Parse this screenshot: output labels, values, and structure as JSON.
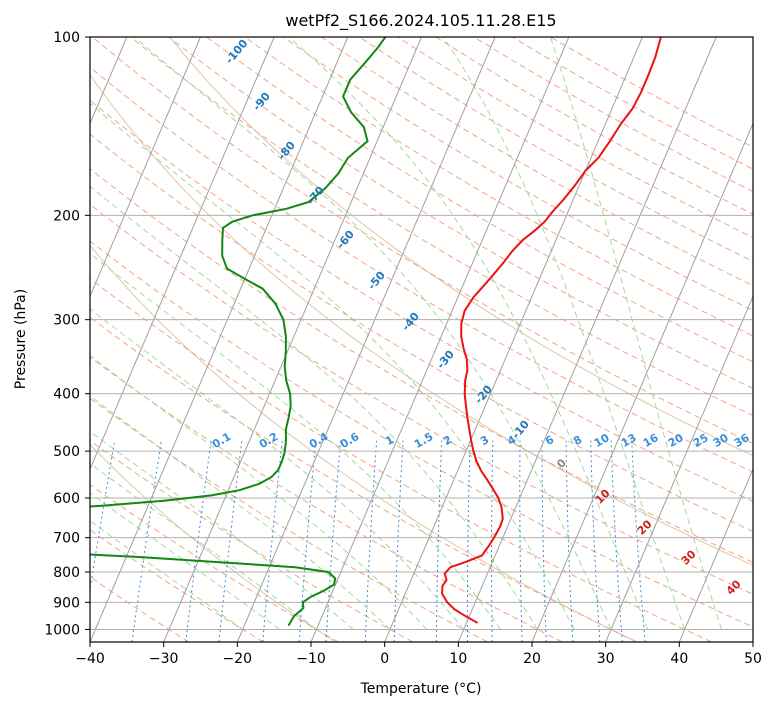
{
  "chart_data": {
    "type": "line",
    "title": "wetPf2_S166.2024.105.11.28.E15",
    "xlabel": "Temperature (°C)",
    "ylabel": "Pressure (hPa)",
    "xlim": [
      -40,
      50
    ],
    "ylim": [
      1050,
      100
    ],
    "y_scale": "log",
    "x_ticks": [
      "−40",
      "−30",
      "−20",
      "−10",
      "0",
      "10",
      "20",
      "30",
      "40",
      "50"
    ],
    "x_tick_values": [
      -40,
      -30,
      -20,
      -10,
      0,
      10,
      20,
      30,
      40,
      50
    ],
    "y_ticks": [
      "100",
      "200",
      "300",
      "400",
      "500",
      "600",
      "700",
      "800",
      "900",
      "1000"
    ],
    "y_tick_values": [
      100,
      200,
      300,
      400,
      500,
      600,
      700,
      800,
      900,
      1000
    ],
    "grid": true,
    "skew": 35,
    "series": [
      {
        "label": "temperature",
        "color": "#ee1111",
        "points": [
          [
            975,
            11.5
          ],
          [
            950,
            9.5
          ],
          [
            925,
            7.6
          ],
          [
            900,
            6.2
          ],
          [
            870,
            5.0
          ],
          [
            845,
            4.6
          ],
          [
            825,
            4.8
          ],
          [
            805,
            4.2
          ],
          [
            785,
            4.6
          ],
          [
            770,
            6.3
          ],
          [
            750,
            8.2
          ],
          [
            720,
            8.6
          ],
          [
            700,
            8.8
          ],
          [
            670,
            9.0
          ],
          [
            650,
            8.9
          ],
          [
            620,
            8.0
          ],
          [
            600,
            7.1
          ],
          [
            580,
            5.9
          ],
          [
            560,
            4.6
          ],
          [
            540,
            3.2
          ],
          [
            520,
            2.0
          ],
          [
            500,
            1.0
          ],
          [
            480,
            0.1
          ],
          [
            460,
            -0.8
          ],
          [
            440,
            -1.7
          ],
          [
            420,
            -2.6
          ],
          [
            400,
            -3.5
          ],
          [
            380,
            -4.2
          ],
          [
            365,
            -4.5
          ],
          [
            350,
            -5.2
          ],
          [
            335,
            -6.3
          ],
          [
            320,
            -7.3
          ],
          [
            305,
            -8.0
          ],
          [
            290,
            -8.3
          ],
          [
            275,
            -7.9
          ],
          [
            262,
            -7.1
          ],
          [
            250,
            -6.4
          ],
          [
            240,
            -5.8
          ],
          [
            230,
            -5.3
          ],
          [
            220,
            -4.5
          ],
          [
            212,
            -3.4
          ],
          [
            205,
            -2.6
          ],
          [
            197,
            -2.1
          ],
          [
            188,
            -1.3
          ],
          [
            178,
            -0.6
          ],
          [
            168,
            0.0
          ],
          [
            160,
            1.0
          ],
          [
            150,
            1.6
          ],
          [
            140,
            2.1
          ],
          [
            132,
            2.8
          ],
          [
            124,
            3.0
          ],
          [
            116,
            3.0
          ],
          [
            108,
            2.9
          ],
          [
            100,
            2.5
          ]
        ]
      },
      {
        "label": "dewpoint",
        "color": "#118811",
        "points": [
          [
            985,
            -14.0
          ],
          [
            950,
            -13.8
          ],
          [
            920,
            -13.0
          ],
          [
            900,
            -13.4
          ],
          [
            880,
            -12.6
          ],
          [
            860,
            -11.2
          ],
          [
            840,
            -10.2
          ],
          [
            820,
            -10.4
          ],
          [
            800,
            -11.7
          ],
          [
            785,
            -16.5
          ],
          [
            770,
            -27.0
          ],
          [
            755,
            -38.0
          ],
          [
            742,
            -50.0
          ],
          [
            728,
            -62.0
          ],
          [
            715,
            -74.0
          ],
          [
            705,
            -84.0
          ],
          [
            697,
            -92.0
          ],
          [
            660,
            -92.0
          ],
          [
            650,
            -80.0
          ],
          [
            640,
            -68.0
          ],
          [
            630,
            -56.0
          ],
          [
            618,
            -46.0
          ],
          [
            606,
            -38.0
          ],
          [
            594,
            -32.0
          ],
          [
            582,
            -28.5
          ],
          [
            568,
            -26.2
          ],
          [
            553,
            -24.9
          ],
          [
            538,
            -24.4
          ],
          [
            522,
            -24.4
          ],
          [
            505,
            -24.5
          ],
          [
            490,
            -24.8
          ],
          [
            475,
            -25.2
          ],
          [
            460,
            -25.7
          ],
          [
            440,
            -26.0
          ],
          [
            420,
            -26.4
          ],
          [
            400,
            -27.2
          ],
          [
            380,
            -28.5
          ],
          [
            360,
            -29.5
          ],
          [
            340,
            -30.2
          ],
          [
            320,
            -31.1
          ],
          [
            300,
            -32.4
          ],
          [
            282,
            -34.4
          ],
          [
            266,
            -37.0
          ],
          [
            256,
            -40.0
          ],
          [
            246,
            -43.0
          ],
          [
            234,
            -44.4
          ],
          [
            220,
            -45.3
          ],
          [
            210,
            -45.9
          ],
          [
            205,
            -45.0
          ],
          [
            200,
            -42.6
          ],
          [
            195,
            -38.4
          ],
          [
            190,
            -35.8
          ],
          [
            180,
            -34.3
          ],
          [
            170,
            -33.4
          ],
          [
            160,
            -33.0
          ],
          [
            150,
            -31.3
          ],
          [
            142,
            -32.6
          ],
          [
            134,
            -35.2
          ],
          [
            126,
            -37.2
          ],
          [
            118,
            -37.2
          ],
          [
            110,
            -36.1
          ],
          [
            104,
            -35.3
          ],
          [
            100,
            -34.9
          ]
        ]
      }
    ],
    "isotherm_labels": [
      "0",
      "10",
      "20",
      "30",
      "40"
    ],
    "isotherm_label_values": [
      0,
      10,
      20,
      30,
      40
    ],
    "dry_adiabat_labels": [
      "-100",
      "-90",
      "-80",
      "-70",
      "-60",
      "-50",
      "-40",
      "-30",
      "-20",
      "-10"
    ],
    "mixing_ratio_labels": [
      "0.1",
      "0.2",
      "0.4",
      "0.6",
      "1",
      "1.5",
      "2",
      "3",
      "4",
      "6",
      "8",
      "10",
      "13",
      "16",
      "20",
      "25",
      "30",
      "36"
    ],
    "mixing_ratio_values": [
      0.1,
      0.2,
      0.4,
      0.6,
      1,
      1.5,
      2,
      3,
      4,
      6,
      8,
      10,
      13,
      16,
      20,
      25,
      30,
      36
    ],
    "colors": {
      "temperature": "#ee1111",
      "dewpoint": "#118811",
      "grid": "#b0b0b0",
      "isotherm": "#a0a0a0",
      "dry_adiabat": "#f4a582",
      "moist_adiabat": "#a6d89b",
      "mixing_ratio": "#3a8fd8",
      "isotherm_label": "#cc2222",
      "adiabat_label": "#2277bb",
      "background_curve": "#dcc8a8"
    }
  }
}
